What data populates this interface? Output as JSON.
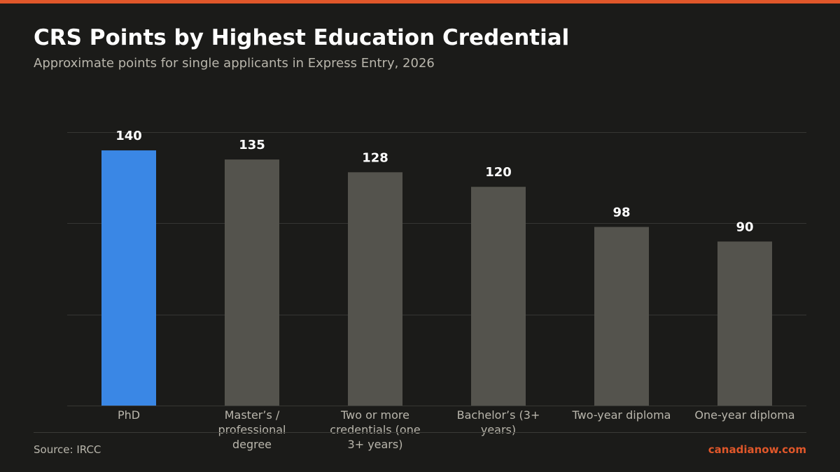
{
  "header": {
    "title": "CRS Points by Highest Education Credential",
    "subtitle": "Approximate points for single applicants in Express Entry, 2026"
  },
  "footer": {
    "source": "Source: IRCC",
    "brand": "canadianow.com"
  },
  "colors": {
    "accent": "#e0572a",
    "highlight_bar": "#3a87e5",
    "default_bar": "#54534d",
    "grid": "#363633",
    "value_label": "#ffffff",
    "category_label": "#b9b6ac"
  },
  "chart_data": {
    "type": "bar",
    "title": "CRS Points by Highest Education Credential",
    "subtitle": "Approximate points for single applicants in Express Entry, 2026",
    "xlabel": "",
    "ylabel": "",
    "categories": [
      [
        "PhD"
      ],
      [
        "Master’s /",
        "professional",
        "degree"
      ],
      [
        "Two or more",
        "credentials (one",
        "3+ years)"
      ],
      [
        "Bachelor’s (3+",
        "years)"
      ],
      [
        "Two-year diploma"
      ],
      [
        "One-year diploma"
      ]
    ],
    "values": [
      140,
      135,
      128,
      120,
      98,
      90
    ],
    "highlight_index": 0,
    "ylim": [
      0,
      150
    ],
    "grid": true,
    "legend": "none"
  }
}
